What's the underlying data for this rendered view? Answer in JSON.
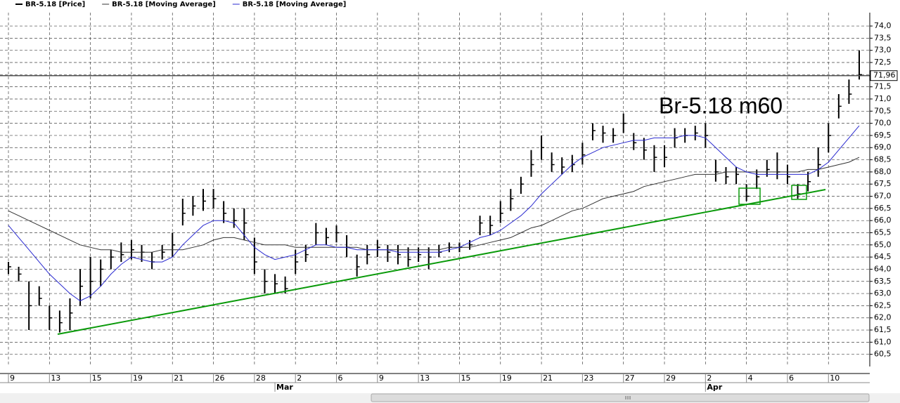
{
  "chart_data": {
    "type": "ohlc",
    "annotation": "Br-5.18 m60",
    "categories": [
      "9",
      null,
      null,
      null,
      "13",
      null,
      null,
      null,
      "15",
      null,
      null,
      null,
      "19",
      null,
      null,
      null,
      "21",
      null,
      null,
      null,
      "26",
      null,
      null,
      null,
      "28",
      null,
      null,
      null,
      "2",
      null,
      null,
      null,
      "6",
      null,
      null,
      null,
      "9",
      null,
      null,
      null,
      "13",
      null,
      null,
      null,
      "15",
      null,
      null,
      null,
      "19",
      null,
      null,
      null,
      "21",
      null,
      null,
      null,
      "23",
      null,
      null,
      null,
      "27",
      null,
      null,
      null,
      "29",
      null,
      null,
      null,
      "2",
      null,
      null,
      null,
      "4",
      null,
      null,
      null,
      "6",
      null,
      null,
      null,
      "10",
      null,
      null,
      null
    ],
    "months": [
      null,
      null,
      null,
      null,
      null,
      null,
      null,
      null,
      null,
      null,
      null,
      null,
      null,
      null,
      null,
      null,
      null,
      null,
      null,
      null,
      null,
      null,
      null,
      null,
      null,
      null,
      "Mar",
      null,
      null,
      null,
      null,
      null,
      null,
      null,
      null,
      null,
      null,
      null,
      null,
      null,
      null,
      null,
      null,
      null,
      null,
      null,
      null,
      null,
      null,
      null,
      null,
      null,
      null,
      null,
      null,
      null,
      null,
      null,
      null,
      null,
      null,
      null,
      null,
      null,
      null,
      null,
      null,
      null,
      "Apr",
      null,
      null,
      null,
      null,
      null,
      null,
      null,
      null,
      null,
      null,
      null,
      null,
      null,
      null,
      null
    ],
    "series": [
      {
        "name": "BR-5.18 [Price]",
        "color": "#000000",
        "high": [
          64.3,
          64.1,
          63.5,
          63.3,
          62.5,
          62.3,
          62.8,
          64.0,
          64.5,
          64.4,
          64.8,
          65.1,
          65.2,
          65.0,
          64.7,
          65.0,
          65.5,
          66.9,
          67.0,
          67.3,
          67.3,
          66.8,
          66.5,
          66.5,
          65.3,
          64.0,
          63.8,
          63.7,
          64.8,
          65.0,
          65.9,
          65.7,
          65.8,
          65.4,
          64.6,
          65.0,
          65.2,
          65.0,
          65.0,
          64.9,
          64.9,
          64.9,
          65.0,
          65.1,
          65.1,
          65.2,
          66.2,
          66.2,
          66.8,
          67.3,
          67.8,
          68.9,
          69.5,
          68.8,
          68.6,
          68.7,
          69.2,
          70.0,
          69.9,
          69.8,
          70.4,
          69.6,
          69.4,
          69.1,
          69.1,
          69.8,
          69.8,
          69.9,
          70.0,
          68.5,
          68.2,
          68.2,
          67.5,
          68.1,
          68.5,
          68.8,
          68.3,
          67.5,
          68.0,
          69.0,
          70.0,
          71.2,
          71.8,
          73.0
        ],
        "low": [
          63.8,
          63.5,
          61.5,
          62.5,
          61.5,
          61.4,
          61.5,
          62.5,
          62.8,
          63.3,
          64.0,
          64.3,
          64.4,
          64.3,
          64.0,
          64.4,
          64.5,
          65.8,
          66.2,
          66.4,
          66.5,
          65.9,
          65.7,
          65.2,
          63.8,
          63.0,
          63.0,
          63.0,
          63.8,
          64.3,
          65.0,
          65.0,
          65.1,
          64.5,
          63.7,
          64.2,
          64.5,
          64.3,
          64.2,
          64.1,
          64.3,
          64.0,
          64.5,
          64.7,
          64.7,
          64.8,
          65.4,
          65.4,
          65.9,
          66.4,
          67.1,
          67.8,
          68.5,
          68.0,
          67.9,
          68.0,
          68.3,
          69.3,
          69.2,
          69.2,
          69.6,
          68.9,
          68.5,
          68.0,
          68.2,
          69.0,
          69.2,
          69.3,
          69.0,
          67.6,
          67.5,
          67.5,
          66.8,
          67.3,
          67.8,
          67.7,
          67.5,
          66.9,
          67.2,
          67.8,
          68.8,
          70.2,
          70.8,
          71.8
        ],
        "values": [
          64.1,
          63.8,
          62.5,
          62.8,
          62.0,
          61.8,
          62.2,
          63.3,
          63.5,
          64.0,
          64.5,
          64.6,
          64.8,
          64.7,
          64.3,
          64.7,
          65.0,
          66.3,
          66.6,
          66.8,
          66.9,
          66.3,
          66.0,
          65.9,
          64.3,
          63.5,
          63.4,
          63.2,
          64.3,
          64.6,
          65.5,
          65.3,
          65.5,
          64.9,
          64.1,
          64.6,
          64.9,
          64.7,
          64.6,
          64.4,
          64.6,
          64.5,
          64.7,
          64.9,
          64.9,
          65.0,
          65.9,
          65.8,
          66.3,
          66.9,
          67.5,
          68.3,
          69.0,
          68.3,
          68.2,
          68.3,
          68.7,
          69.7,
          69.6,
          69.5,
          70.0,
          69.2,
          68.9,
          68.6,
          68.6,
          69.4,
          69.5,
          69.6,
          69.5,
          68.0,
          67.8,
          67.9,
          67.0,
          67.8,
          68.1,
          68.0,
          67.8,
          67.1,
          67.6,
          68.3,
          69.5,
          70.7,
          71.2,
          72.0
        ]
      },
      {
        "name": "BR-5.18 [Moving Average]",
        "color": "#333333",
        "values": [
          66.4,
          66.2,
          66.0,
          65.8,
          65.6,
          65.4,
          65.2,
          65.0,
          64.9,
          64.8,
          64.8,
          64.7,
          64.7,
          64.7,
          64.7,
          64.8,
          64.8,
          64.8,
          64.9,
          65.0,
          65.2,
          65.3,
          65.3,
          65.2,
          65.1,
          65.0,
          65.0,
          65.0,
          64.9,
          64.9,
          64.9,
          64.9,
          64.9,
          64.9,
          64.9,
          64.8,
          64.8,
          64.8,
          64.8,
          64.8,
          64.8,
          64.8,
          64.8,
          64.9,
          64.9,
          64.9,
          65.0,
          65.1,
          65.2,
          65.3,
          65.5,
          65.7,
          65.8,
          66.0,
          66.2,
          66.4,
          66.5,
          66.7,
          66.9,
          67.0,
          67.1,
          67.2,
          67.4,
          67.5,
          67.6,
          67.7,
          67.8,
          67.9,
          67.9,
          67.9,
          68.0,
          68.0,
          68.0,
          68.0,
          68.0,
          68.0,
          68.0,
          68.0,
          68.1,
          68.1,
          68.2,
          68.3,
          68.4,
          68.6
        ]
      },
      {
        "name": "BR-5.18 [Moving Average]",
        "color": "#2a2ad0",
        "values": [
          65.8,
          65.3,
          64.8,
          64.3,
          63.8,
          63.4,
          63.0,
          62.7,
          62.9,
          63.3,
          63.8,
          64.2,
          64.5,
          64.4,
          64.3,
          64.3,
          64.5,
          65.0,
          65.4,
          65.8,
          66.0,
          66.0,
          65.9,
          65.4,
          64.9,
          64.6,
          64.4,
          64.5,
          64.6,
          64.8,
          65.0,
          65.0,
          64.9,
          64.9,
          64.8,
          64.8,
          64.8,
          64.8,
          64.7,
          64.7,
          64.7,
          64.7,
          64.7,
          64.8,
          64.9,
          65.1,
          65.3,
          65.4,
          65.6,
          65.9,
          66.2,
          66.6,
          67.1,
          67.5,
          67.9,
          68.3,
          68.6,
          68.8,
          69.0,
          69.1,
          69.2,
          69.3,
          69.3,
          69.4,
          69.4,
          69.4,
          69.5,
          69.5,
          69.4,
          69.0,
          68.6,
          68.2,
          68.0,
          67.9,
          67.9,
          67.9,
          67.9,
          67.9,
          67.9,
          68.1,
          68.4,
          68.9,
          69.4,
          69.9
        ]
      }
    ],
    "last_price": {
      "value": 71.96,
      "label": "71,96"
    },
    "ylim": [
      60.0,
      74.55
    ],
    "yticks": [
      {
        "value": 60.5,
        "label": "60,5"
      },
      {
        "value": 61.0,
        "label": "61,0"
      },
      {
        "value": 61.5,
        "label": "61,5"
      },
      {
        "value": 62.0,
        "label": "62,0"
      },
      {
        "value": 62.5,
        "label": "62,5"
      },
      {
        "value": 63.0,
        "label": "63,0"
      },
      {
        "value": 63.5,
        "label": "63,5"
      },
      {
        "value": 64.0,
        "label": "64,0"
      },
      {
        "value": 64.5,
        "label": "64,5"
      },
      {
        "value": 65.0,
        "label": "65,0"
      },
      {
        "value": 65.5,
        "label": "65,5"
      },
      {
        "value": 66.0,
        "label": "66,0"
      },
      {
        "value": 66.5,
        "label": "66,5"
      },
      {
        "value": 67.0,
        "label": "67,0"
      },
      {
        "value": 67.5,
        "label": "67,5"
      },
      {
        "value": 68.0,
        "label": "68,0"
      },
      {
        "value": 68.5,
        "label": "68,5"
      },
      {
        "value": 69.0,
        "label": "69,0"
      },
      {
        "value": 69.5,
        "label": "69,5"
      },
      {
        "value": 70.0,
        "label": "70,0"
      },
      {
        "value": 70.5,
        "label": "70,5"
      },
      {
        "value": 71.0,
        "label": "71,0"
      },
      {
        "value": 71.5,
        "label": "71,5"
      },
      {
        "value": 72.0,
        "label": "72,0"
      },
      {
        "value": 72.5,
        "label": "72,5"
      },
      {
        "value": 73.0,
        "label": "73,0"
      },
      {
        "value": 73.5,
        "label": "73,5"
      },
      {
        "value": 74.0,
        "label": "74,0"
      }
    ],
    "grid": true
  }
}
